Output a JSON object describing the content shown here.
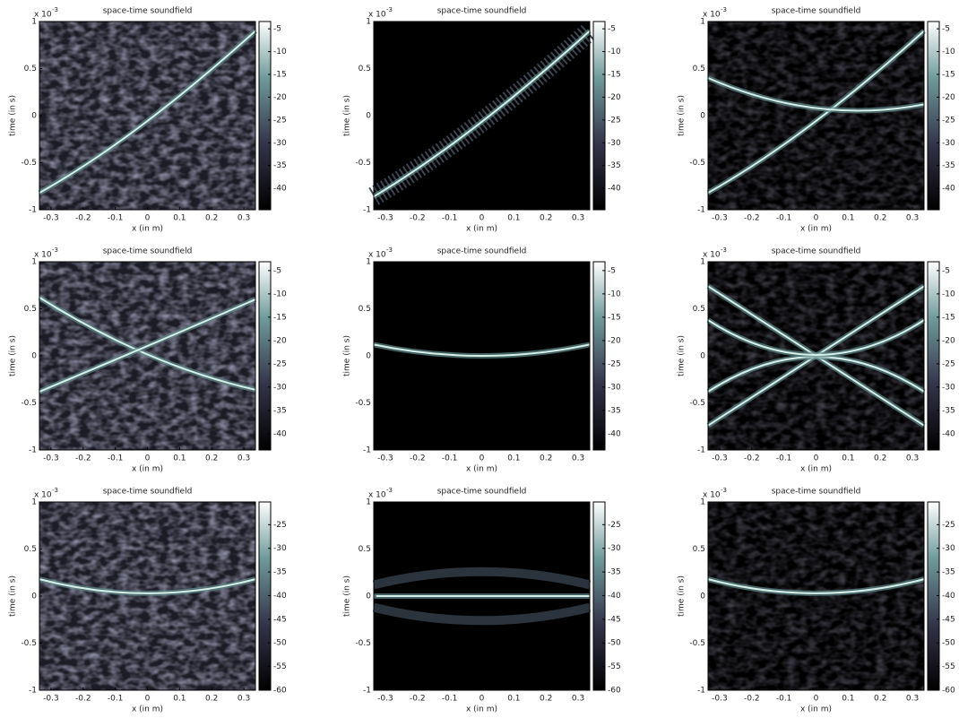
{
  "chart_data": [
    {
      "type": "heatmap",
      "title": "space-time soundfield",
      "xlabel": "x (in m)",
      "ylabel": "time (in s)",
      "y_multiplier": "x 10",
      "y_multiplier_exponent": "-3",
      "xlim": [
        -0.336,
        0.336
      ],
      "xticks": [
        -0.3,
        -0.2,
        -0.1,
        0,
        0.1,
        0.2,
        0.3
      ],
      "ylim": [
        -1,
        1
      ],
      "yticks": [
        -1,
        -0.5,
        0,
        0.5,
        1
      ],
      "clim": [
        -44.7,
        -3.4
      ],
      "cticks": [
        -40,
        -35,
        -30,
        -25,
        -20,
        -15,
        -10,
        -5
      ],
      "colormap": "bone"
    },
    {
      "type": "heatmap",
      "title": "space-time soundfield",
      "xlabel": "x (in m)",
      "ylabel": "time (in s)",
      "y_multiplier": "x 10",
      "y_multiplier_exponent": "-3",
      "xlim": [
        -0.336,
        0.336
      ],
      "xticks": [
        -0.3,
        -0.2,
        -0.1,
        0,
        0.1,
        0.2,
        0.3
      ],
      "ylim": [
        -1,
        1
      ],
      "yticks": [
        -1,
        -0.5,
        0,
        0.5,
        1
      ],
      "clim": [
        -44.7,
        -3.4
      ],
      "cticks": [
        -40,
        -35,
        -30,
        -25,
        -20,
        -15,
        -10,
        -5
      ],
      "colormap": "bone"
    },
    {
      "type": "heatmap",
      "title": "space-time soundfield",
      "xlabel": "x (in m)",
      "ylabel": "time (in s)",
      "y_multiplier": "x 10",
      "y_multiplier_exponent": "-3",
      "xlim": [
        -0.336,
        0.336
      ],
      "xticks": [
        -0.3,
        -0.2,
        -0.1,
        0,
        0.1,
        0.2,
        0.3
      ],
      "ylim": [
        -1,
        1
      ],
      "yticks": [
        -1,
        -0.5,
        0,
        0.5,
        1
      ],
      "clim": [
        -44.7,
        -3.4
      ],
      "cticks": [
        -40,
        -35,
        -30,
        -25,
        -20,
        -15,
        -10,
        -5
      ],
      "colormap": "bone"
    },
    {
      "type": "heatmap",
      "title": "space-time soundfield",
      "xlabel": "x (in m)",
      "ylabel": "time (in s)",
      "y_multiplier": "x 10",
      "y_multiplier_exponent": "-3",
      "xlim": [
        -0.336,
        0.336
      ],
      "xticks": [
        -0.3,
        -0.2,
        -0.1,
        0,
        0.1,
        0.2,
        0.3
      ],
      "ylim": [
        -1,
        1
      ],
      "yticks": [
        -1,
        -0.5,
        0,
        0.5,
        1
      ],
      "clim": [
        -43.5,
        -3.1
      ],
      "cticks": [
        -40,
        -35,
        -30,
        -25,
        -20,
        -15,
        -10,
        -5
      ],
      "colormap": "bone"
    },
    {
      "type": "heatmap",
      "title": "space-time soundfield",
      "xlabel": "x (in m)",
      "ylabel": "time (in s)",
      "y_multiplier": "x 10",
      "y_multiplier_exponent": "-3",
      "xlim": [
        -0.336,
        0.336
      ],
      "xticks": [
        -0.3,
        -0.2,
        -0.1,
        0,
        0.1,
        0.2,
        0.3
      ],
      "ylim": [
        -1,
        1
      ],
      "yticks": [
        -1,
        -0.5,
        0,
        0.5,
        1
      ],
      "clim": [
        -43.5,
        -3.1
      ],
      "cticks": [
        -40,
        -35,
        -30,
        -25,
        -20,
        -15,
        -10,
        -5
      ],
      "colormap": "bone"
    },
    {
      "type": "heatmap",
      "title": "space-time soundfield",
      "xlabel": "x (in m)",
      "ylabel": "time (in s)",
      "y_multiplier": "x 10",
      "y_multiplier_exponent": "-3",
      "xlim": [
        -0.336,
        0.336
      ],
      "xticks": [
        -0.3,
        -0.2,
        -0.1,
        0,
        0.1,
        0.2,
        0.3
      ],
      "ylim": [
        -1,
        1
      ],
      "yticks": [
        -1,
        -0.5,
        0,
        0.5,
        1
      ],
      "clim": [
        -43.5,
        -3.1
      ],
      "cticks": [
        -40,
        -35,
        -30,
        -25,
        -20,
        -15,
        -10,
        -5
      ],
      "colormap": "bone"
    },
    {
      "type": "heatmap",
      "title": "space-time soundfield",
      "xlabel": "x (in m)",
      "ylabel": "time (in s)",
      "y_multiplier": "x 10",
      "y_multiplier_exponent": "-3",
      "xlim": [
        -0.336,
        0.336
      ],
      "xticks": [
        -0.3,
        -0.2,
        -0.1,
        0,
        0.1,
        0.2,
        0.3
      ],
      "ylim": [
        -1,
        1
      ],
      "yticks": [
        -1,
        -0.5,
        0,
        0.5,
        1
      ],
      "clim": [
        -60,
        -20.2
      ],
      "cticks": [
        -60,
        -55,
        -50,
        -45,
        -40,
        -35,
        -30,
        -25
      ],
      "colormap": "bone"
    },
    {
      "type": "heatmap",
      "title": "space-time soundfield",
      "xlabel": "x (in m)",
      "ylabel": "time (in s)",
      "y_multiplier": "x 10",
      "y_multiplier_exponent": "-3",
      "xlim": [
        -0.336,
        0.336
      ],
      "xticks": [
        -0.3,
        -0.2,
        -0.1,
        0,
        0.1,
        0.2,
        0.3
      ],
      "ylim": [
        -1,
        1
      ],
      "yticks": [
        -1,
        -0.5,
        0,
        0.5,
        1
      ],
      "clim": [
        -60,
        -20.2
      ],
      "cticks": [
        -60,
        -55,
        -50,
        -45,
        -40,
        -35,
        -30,
        -25
      ],
      "colormap": "bone"
    },
    {
      "type": "heatmap",
      "title": "space-time soundfield",
      "xlabel": "x (in m)",
      "ylabel": "time (in s)",
      "y_multiplier": "x 10",
      "y_multiplier_exponent": "-3",
      "xlim": [
        -0.336,
        0.336
      ],
      "xticks": [
        -0.3,
        -0.2,
        -0.1,
        0,
        0.1,
        0.2,
        0.3
      ],
      "ylim": [
        -1,
        1
      ],
      "yticks": [
        -1,
        -0.5,
        0,
        0.5,
        1
      ],
      "clim": [
        -60,
        -20.2
      ],
      "cticks": [
        -60,
        -55,
        -50,
        -45,
        -40,
        -35,
        -30,
        -25
      ],
      "colormap": "bone"
    }
  ]
}
